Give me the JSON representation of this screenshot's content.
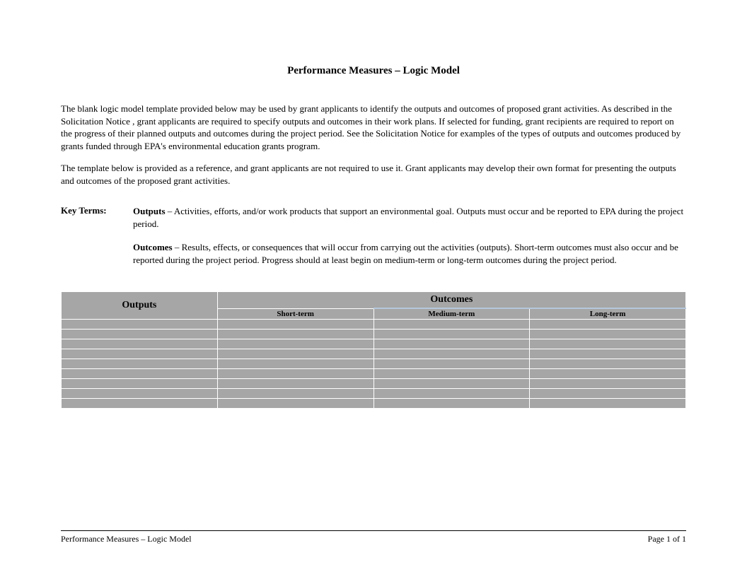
{
  "title": "Performance Measures – Logic Model",
  "paragraph1": "The blank logic model template provided below  may be used by grant applicants to identify the outputs and outcomes of proposed grant activities. As described in the Solicitation Notice , grant applicants are required to specify outputs and outcomes in their work plans.  If selected for funding, grant recipients are required to report on the progress of their planned outputs and outcomes during the project period.  See the Solicitation Notice for examples of the types of outputs and outcomes produced by grants funded through EPA's environmental education grants program.",
  "paragraph2": "The template below is provided as a reference, and grant applicants are not required to use it.  Grant applicants may develop their own format for presenting the outputs and outcomes of the proposed grant activities.",
  "keyTermsLabel": "Key Terms:",
  "terms": {
    "outputs": {
      "name": "Outputs",
      "def": " – Activities, efforts, and/or work products that support an environmental goal.   Outputs must occur and be reported to EPA during the project period."
    },
    "outcomes": {
      "name": "Outcomes",
      "def": " – Results, effects, or consequences that will occur from carrying out the activities (outputs).  Short-term outcomes must also occur and be reported during the project period.   Progress should at least begin on medium-term or long-term outcomes during the project period."
    }
  },
  "table": {
    "header1_col1": "Outputs",
    "header1_col2": "Outcomes",
    "subheaders": [
      "Short-term",
      "Medium-term",
      "Long-term"
    ],
    "rowCount": 9,
    "colors": {
      "header_bg": "#a6a6a6",
      "row_bg": "#a6a6a6",
      "border": "#ffffff",
      "sub_divider": "#b4c7dc"
    },
    "col_widths_pct": [
      25,
      25,
      25,
      25
    ]
  },
  "footer": {
    "left": "Performance Measures – Logic Model",
    "right": "Page 1 of 1"
  }
}
